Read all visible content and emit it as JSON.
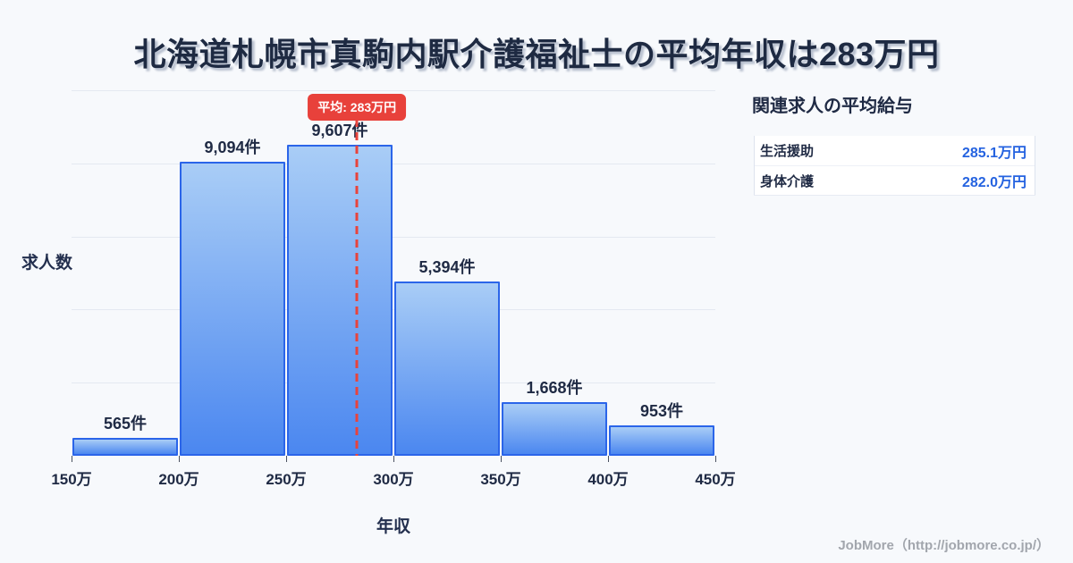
{
  "title": "北海道札幌市真駒内駅介護福祉士の平均年収は283万円",
  "colors": {
    "background": "#f7f9fc",
    "title_text": "#1e2a42",
    "bar_fill_top": "#a9cdf6",
    "bar_fill_bottom": "#4b87f0",
    "bar_border": "#2b65e9",
    "average_red": "#e8413b",
    "value_blue": "#2563e0",
    "gridline": "#e4e9f1"
  },
  "chart_data": {
    "type": "bar",
    "title": "北海道札幌市真駒内駅介護福祉士の平均年収は283万円",
    "xlabel": "年収",
    "ylabel": "求人数",
    "categories": [
      "150万",
      "200万",
      "250万",
      "300万",
      "350万",
      "400万",
      "450万"
    ],
    "x_range_man_yen": [
      150,
      450
    ],
    "values": [
      565,
      9094,
      9607,
      5394,
      1668,
      953
    ],
    "bar_labels": [
      "565件",
      "9,094件",
      "9,607件",
      "5,394件",
      "1,668件",
      "953件"
    ],
    "bins": [
      {
        "range": "150万-200万",
        "count": 565
      },
      {
        "range": "200万-250万",
        "count": 9094
      },
      {
        "range": "250万-300万",
        "count": 9607
      },
      {
        "range": "300万-350万",
        "count": 5394
      },
      {
        "range": "350万-400万",
        "count": 1668
      },
      {
        "range": "400万-450万",
        "count": 953
      }
    ],
    "average": {
      "label": "平均: 283万円",
      "value_man_yen": 283
    },
    "ylim": [
      0,
      11300
    ],
    "grid": true,
    "legend": false
  },
  "side_panel": {
    "heading": "関連求人の平均給与",
    "rows": [
      {
        "label": "生活援助",
        "value": "285.1万円"
      },
      {
        "label": "身体介護",
        "value": "282.0万円"
      }
    ]
  },
  "footer": {
    "credit": "JobMore（http://jobmore.co.jp/）"
  }
}
